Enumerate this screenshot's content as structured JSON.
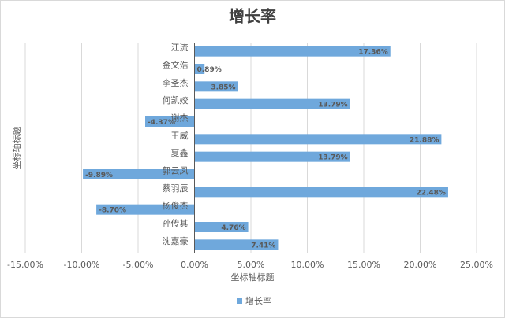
{
  "chart_data": {
    "type": "hbar",
    "title": "增长率",
    "categories": [
      "江流",
      "金文浩",
      "李圣杰",
      "何凯姣",
      "谢杰",
      "王威",
      "夏鑫",
      "郭云凤",
      "蔡羽辰",
      "杨俊杰",
      "孙传其",
      "沈嘉豪"
    ],
    "series": [
      {
        "name": "增长率",
        "color": "#6fa8dc",
        "values": [
          17.36,
          0.89,
          3.85,
          13.79,
          -4.37,
          21.88,
          13.79,
          -9.89,
          22.48,
          -8.7,
          4.76,
          7.41
        ],
        "value_labels": [
          "17.36%",
          "0.89%",
          "3.85%",
          "13.79%",
          "-4.37%",
          "21.88%",
          "13.79%",
          "-9.89%",
          "22.48%",
          "-8.70%",
          "4.76%",
          "7.41%"
        ]
      }
    ],
    "xlim": [
      -15,
      25
    ],
    "xticks": [
      {
        "value": -15,
        "label": "-15.00%"
      },
      {
        "value": -10,
        "label": "-10.00%"
      },
      {
        "value": -5,
        "label": "-5.00%"
      },
      {
        "value": 0,
        "label": "0.00%"
      },
      {
        "value": 5,
        "label": "5.00%"
      },
      {
        "value": 10,
        "label": "10.00%"
      },
      {
        "value": 15,
        "label": "15.00%"
      },
      {
        "value": 20,
        "label": "20.00%"
      },
      {
        "value": 25,
        "label": "25.00%"
      }
    ],
    "x_label": "坐标轴标题",
    "y_label": "坐标轴标题",
    "grid": true,
    "legend": "bottom"
  }
}
